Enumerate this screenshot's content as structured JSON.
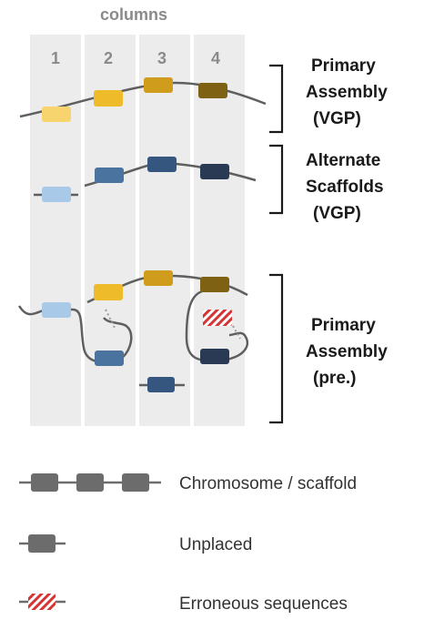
{
  "header": {
    "columns_label": "columns"
  },
  "columns": [
    "1",
    "2",
    "3",
    "4"
  ],
  "brackets": [
    {
      "lines": [
        "Primary",
        "Assembly",
        "(VGP)"
      ]
    },
    {
      "lines": [
        "Alternate",
        "Scaffolds",
        "(VGP)"
      ]
    },
    {
      "lines": [
        "Primary",
        "Assembly",
        "(pre.)"
      ]
    }
  ],
  "legend": [
    {
      "label": "Chromosome / scaffold"
    },
    {
      "label": "Unplaced"
    },
    {
      "label": "Erroneous sequences"
    }
  ],
  "colors": {
    "column_bg": "#ececec",
    "line": "#5f5f5f",
    "yellow_1": "#f7d46d",
    "yellow_2": "#eebb2b",
    "yellow_3": "#cf9c1c",
    "yellow_4": "#7e6113",
    "blue_1": "#a9c9e8",
    "blue_2": "#4b73a0",
    "blue_3": "#35577f",
    "blue_4": "#2a3a55",
    "legend_grey": "#6c6c6c",
    "error_red": "#d63434",
    "text_grey": "#8a8a8a",
    "text_dark": "#1a1a1a"
  }
}
